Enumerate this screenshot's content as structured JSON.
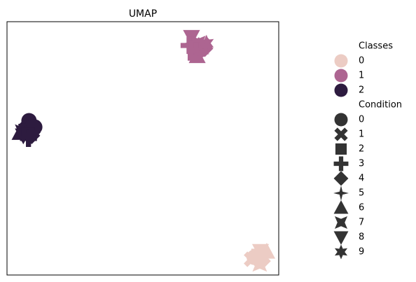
{
  "chart_data": {
    "type": "scatter",
    "title": "UMAP",
    "xlabel": "",
    "ylabel": "",
    "xlim": [
      0,
      100
    ],
    "ylim": [
      0,
      100
    ],
    "grid": false,
    "legend_placement": "right-outside",
    "palette": {
      "0": "#ecccc4",
      "1": "#ad6591",
      "2": "#2d1b3f",
      "marker_gray": "#333333"
    },
    "legend": {
      "hue_title": "Classes",
      "hue_labels": [
        "0",
        "1",
        "2"
      ],
      "style_title": "Condition",
      "style_labels": [
        "0",
        "1",
        "2",
        "3",
        "4",
        "5",
        "6",
        "7",
        "8",
        "9"
      ],
      "style_markers": [
        "circle",
        "x",
        "square",
        "plus",
        "diamond",
        "star4",
        "triangle-up",
        "hourglass",
        "triangle-down",
        "star6"
      ]
    },
    "points": [
      {
        "x": 67.9,
        "y": 94.0,
        "class": 1,
        "condition": 8
      },
      {
        "x": 68.5,
        "y": 91.5,
        "class": 1,
        "condition": 5
      },
      {
        "x": 67.0,
        "y": 90.6,
        "class": 1,
        "condition": 3
      },
      {
        "x": 69.2,
        "y": 90.0,
        "class": 1,
        "condition": 2
      },
      {
        "x": 70.4,
        "y": 91.6,
        "class": 1,
        "condition": 7
      },
      {
        "x": 72.1,
        "y": 90.8,
        "class": 1,
        "condition": 1
      },
      {
        "x": 73.4,
        "y": 91.5,
        "class": 1,
        "condition": 9
      },
      {
        "x": 72.8,
        "y": 89.4,
        "class": 1,
        "condition": 4
      },
      {
        "x": 71.0,
        "y": 88.8,
        "class": 1,
        "condition": 0
      },
      {
        "x": 69.6,
        "y": 88.4,
        "class": 1,
        "condition": 3
      },
      {
        "x": 68.9,
        "y": 87.2,
        "class": 1,
        "condition": 2
      },
      {
        "x": 70.0,
        "y": 86.4,
        "class": 1,
        "condition": 6
      },
      {
        "x": 71.3,
        "y": 87.3,
        "class": 1,
        "condition": 5
      },
      {
        "x": 8.1,
        "y": 60.9,
        "class": 2,
        "condition": 0
      },
      {
        "x": 7.4,
        "y": 59.3,
        "class": 2,
        "condition": 4
      },
      {
        "x": 8.8,
        "y": 58.4,
        "class": 2,
        "condition": 3
      },
      {
        "x": 7.2,
        "y": 57.9,
        "class": 2,
        "condition": 5
      },
      {
        "x": 6.6,
        "y": 57.1,
        "class": 2,
        "condition": 2
      },
      {
        "x": 8.7,
        "y": 56.8,
        "class": 2,
        "condition": 9
      },
      {
        "x": 9.5,
        "y": 57.9,
        "class": 2,
        "condition": 1
      },
      {
        "x": 10.2,
        "y": 58.4,
        "class": 2,
        "condition": 0
      },
      {
        "x": 5.6,
        "y": 56.6,
        "class": 2,
        "condition": 7
      },
      {
        "x": 4.8,
        "y": 56.1,
        "class": 2,
        "condition": 6
      },
      {
        "x": 6.0,
        "y": 55.1,
        "class": 2,
        "condition": 8
      },
      {
        "x": 7.8,
        "y": 55.6,
        "class": 2,
        "condition": 2
      },
      {
        "x": 7.9,
        "y": 53.9,
        "class": 2,
        "condition": 3
      },
      {
        "x": 9.1,
        "y": 55.0,
        "class": 2,
        "condition": 4
      },
      {
        "x": 93.3,
        "y": 9.5,
        "class": 0,
        "condition": 8
      },
      {
        "x": 95.6,
        "y": 9.2,
        "class": 0,
        "condition": 6
      },
      {
        "x": 94.6,
        "y": 8.3,
        "class": 0,
        "condition": 5
      },
      {
        "x": 92.3,
        "y": 7.8,
        "class": 0,
        "condition": 2
      },
      {
        "x": 93.8,
        "y": 7.2,
        "class": 0,
        "condition": 9
      },
      {
        "x": 91.0,
        "y": 7.0,
        "class": 0,
        "condition": 0
      },
      {
        "x": 90.0,
        "y": 6.2,
        "class": 0,
        "condition": 1
      },
      {
        "x": 92.5,
        "y": 5.8,
        "class": 0,
        "condition": 3
      },
      {
        "x": 94.0,
        "y": 5.5,
        "class": 0,
        "condition": 4
      },
      {
        "x": 93.0,
        "y": 4.2,
        "class": 0,
        "condition": 7
      }
    ]
  }
}
